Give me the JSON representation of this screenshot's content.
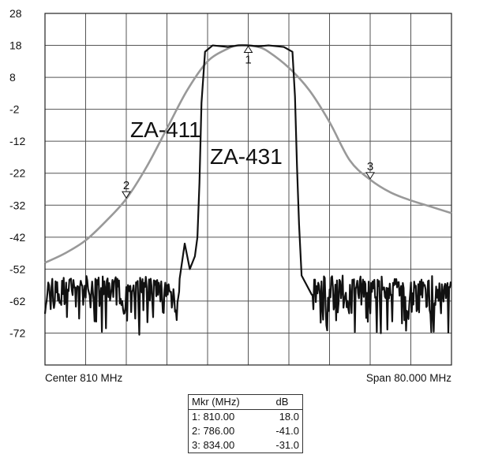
{
  "chart_data": {
    "type": "line",
    "x_unit": "MHz",
    "xlim": [
      770,
      850
    ],
    "ylim": [
      -82,
      28
    ],
    "yticks": [
      28,
      18,
      8,
      -2,
      -12,
      -22,
      -32,
      -42,
      -52,
      -62,
      -72
    ],
    "grid": true,
    "bottom_left_label": "Center 810 MHz",
    "bottom_right_label": "Span 80.000 MHz",
    "series": [
      {
        "name": "ZA-411",
        "color": "#999999",
        "x": [
          770,
          774,
          778,
          782,
          786,
          790,
          794,
          798,
          802,
          806,
          808,
          810,
          812,
          814,
          818,
          822,
          826,
          830,
          834,
          838,
          842,
          846,
          850
        ],
        "y": [
          -50,
          -47,
          -43,
          -37,
          -30,
          -20,
          -8,
          4,
          13,
          17,
          18,
          18,
          17.5,
          16,
          11,
          4,
          -6,
          -18,
          -24,
          -28,
          -30.5,
          -32.5,
          -34.5
        ]
      },
      {
        "name": "ZA-431",
        "color": "#111111",
        "noise_floor": [
          -73,
          -55
        ],
        "x": [
          796.5,
          797.5,
          798.5,
          799.5,
          800,
          800.4,
          800.8,
          801.5,
          803,
          806,
          808,
          810,
          812,
          814,
          817,
          818.7,
          819.2,
          819.6,
          820,
          820.5,
          821.5,
          822.5
        ],
        "y": [
          -55,
          -44,
          -52,
          -48,
          -42,
          -25,
          0,
          16,
          18,
          17.5,
          18,
          18,
          17.7,
          18,
          17.5,
          16,
          2,
          -20,
          -38,
          -54,
          -57,
          -60
        ]
      }
    ],
    "markers": [
      {
        "id": "1",
        "freq": 810.0,
        "db": 18.0
      },
      {
        "id": "2",
        "freq": 786.0,
        "db": -41.0
      },
      {
        "id": "3",
        "freq": 834.0,
        "db": -31.0
      }
    ],
    "marker_table": {
      "header_mkr": "Mkr (MHz)",
      "header_db": "dB",
      "rows": [
        {
          "mkr": "1: 810.00",
          "db": "18.0"
        },
        {
          "mkr": "2: 786.00",
          "db": "-41.0"
        },
        {
          "mkr": "3: 834.00",
          "db": "-31.0"
        }
      ]
    }
  }
}
